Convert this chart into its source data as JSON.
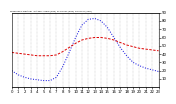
{
  "hours": [
    0,
    1,
    2,
    3,
    4,
    5,
    6,
    7,
    8,
    9,
    10,
    11,
    12,
    13,
    14,
    15,
    16,
    17,
    18,
    19,
    20,
    21,
    22,
    23
  ],
  "temp_red": [
    42,
    41,
    40,
    39,
    38,
    38,
    38,
    39,
    43,
    48,
    53,
    57,
    59,
    60,
    60,
    59,
    57,
    54,
    51,
    49,
    47,
    46,
    45,
    44
  ],
  "thsw_blue": [
    20,
    15,
    12,
    10,
    9,
    8,
    8,
    12,
    25,
    42,
    60,
    75,
    82,
    83,
    80,
    72,
    60,
    48,
    38,
    30,
    26,
    23,
    21,
    19
  ],
  "ylim_min": 0,
  "ylim_max": 90,
  "xlim_min": 0,
  "xlim_max": 23,
  "bg_color": "#ffffff",
  "red_color": "#dd0000",
  "blue_color": "#0000dd",
  "grid_color": "#999999",
  "right_ytick_values": [
    10,
    20,
    30,
    40,
    50,
    60,
    70,
    80,
    90
  ],
  "tick_label_size": 2.8,
  "linewidth_red": 0.7,
  "linewidth_blue": 0.7
}
